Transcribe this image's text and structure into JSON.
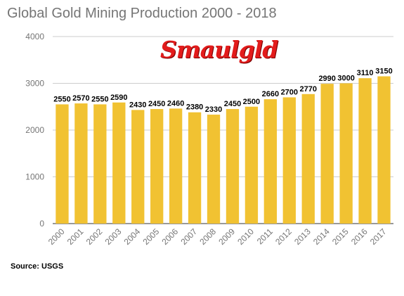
{
  "chart_data": {
    "type": "bar",
    "title": "Global Gold Mining Production 2000 - 2018",
    "categories": [
      "2000",
      "2001",
      "2002",
      "2003",
      "2004",
      "2005",
      "2006",
      "2007",
      "2008",
      "2009",
      "2010",
      "2011",
      "2012",
      "2013",
      "2014",
      "2015",
      "2016",
      "2017"
    ],
    "values": [
      2550,
      2570,
      2550,
      2590,
      2430,
      2450,
      2460,
      2380,
      2330,
      2450,
      2500,
      2660,
      2700,
      2770,
      2990,
      3000,
      3110,
      3150
    ],
    "data_labels": [
      "2550",
      "2570",
      "2550",
      "2590",
      "2430",
      "2450",
      "2460",
      "2380",
      "2330",
      "2450",
      "2500",
      "2660",
      "2700",
      "2770",
      "2990",
      "3000",
      "3110",
      "3150"
    ],
    "yticks": [
      0,
      1000,
      2000,
      3000,
      4000
    ],
    "ylim": [
      0,
      4000
    ],
    "xlabel": "",
    "ylabel": "",
    "grid": true,
    "legend": "none",
    "bar_color": "#f1c232",
    "grid_color": "#cccccc"
  },
  "logo_text": "Smaulgld",
  "source_text": "Source: USGS"
}
